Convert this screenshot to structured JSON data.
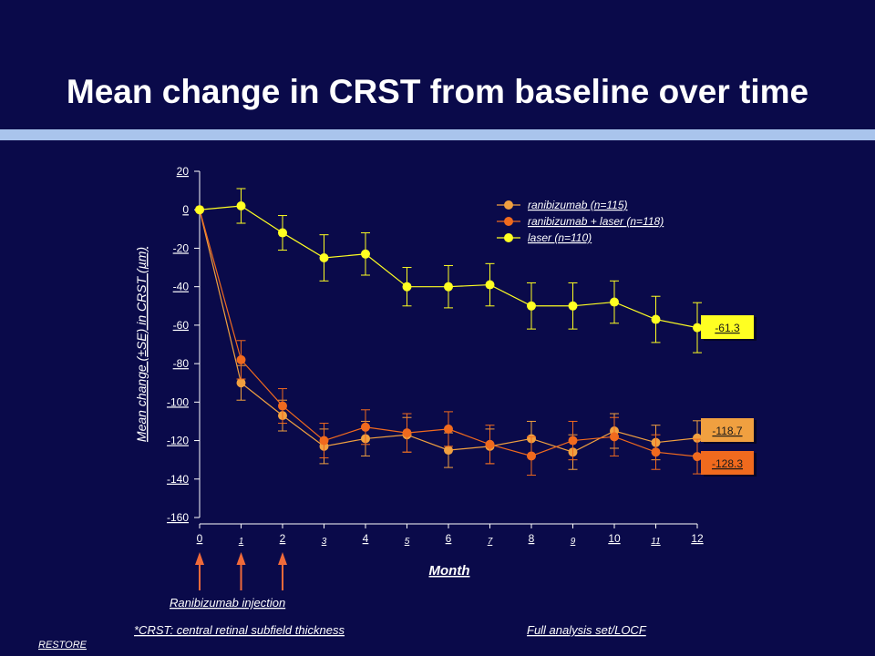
{
  "slide": {
    "title": "Mean change in CRST from baseline over time"
  },
  "footer": {
    "injection_label": "Ranibizumab injection",
    "footnote": "*CRST: central retinal subfield  thickness",
    "analysis_note": "Full analysis set/LOCF",
    "study": "RESTORE"
  },
  "colors": {
    "background": "#0a0a4a",
    "rule": "#a9c4ec",
    "ranibizumab": "#f0a040",
    "ranibizumab_laser": "#f06a1e",
    "laser": "#ffff22",
    "arrow": "#f06a3a"
  },
  "injection_months": [
    0,
    1,
    2
  ],
  "chart_data": {
    "type": "line",
    "title": "",
    "xlabel": "Month",
    "ylabel": "Mean change (±SE) in CRST (µm)",
    "x": [
      0,
      1,
      2,
      3,
      4,
      5,
      6,
      7,
      8,
      9,
      10,
      11,
      12
    ],
    "x_tick_labels": [
      "0",
      "1",
      "2",
      "3",
      "4",
      "5",
      "6",
      "7",
      "8",
      "9",
      "10",
      "11",
      "12"
    ],
    "ylim": [
      -160,
      20
    ],
    "y_ticks": [
      20,
      0,
      -20,
      -40,
      -60,
      -80,
      -100,
      -120,
      -140,
      -160
    ],
    "grid": false,
    "legend_position": "top-right",
    "series": [
      {
        "name": "ranibizumab (n=115)",
        "color": "#f0a040",
        "values": [
          0,
          -90,
          -107,
          -123,
          -119,
          -117,
          -125,
          -123,
          -119,
          -126,
          -115,
          -121,
          -118.7
        ],
        "errors": [
          0,
          9,
          8,
          9,
          9,
          9,
          9,
          9,
          9,
          9,
          9,
          9,
          9
        ],
        "end_label": "-118.7"
      },
      {
        "name": "ranibizumab + laser (n=118)",
        "color": "#f06a1e",
        "values": [
          0,
          -78,
          -102,
          -120,
          -113,
          -116,
          -114,
          -122,
          -128,
          -120,
          -118,
          -126,
          -128.3
        ],
        "errors": [
          0,
          10,
          9,
          9,
          9,
          10,
          9,
          10,
          10,
          10,
          10,
          9,
          9
        ],
        "end_label": "-128.3"
      },
      {
        "name": "laser (n=110)",
        "color": "#ffff22",
        "values": [
          0,
          2,
          -12,
          -25,
          -23,
          -40,
          -40,
          -39,
          -50,
          -50,
          -48,
          -57,
          -61.3
        ],
        "errors": [
          0,
          9,
          9,
          12,
          11,
          10,
          11,
          11,
          12,
          12,
          11,
          12,
          13
        ],
        "end_label": "-61.3"
      }
    ]
  }
}
